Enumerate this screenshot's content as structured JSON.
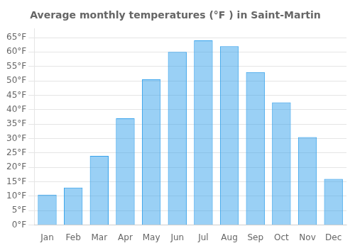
{
  "chart_data": {
    "type": "bar",
    "title": "Average monthly temperatures (°F ) in Saint-Martin",
    "categories": [
      "Jan",
      "Feb",
      "Mar",
      "Apr",
      "May",
      "Jun",
      "Jul",
      "Aug",
      "Sep",
      "Oct",
      "Nov",
      "Dec"
    ],
    "values": [
      10.5,
      13,
      24,
      37,
      50.5,
      60,
      64,
      62,
      53,
      42.5,
      30.5,
      16
    ],
    "ylim": [
      0,
      68
    ],
    "yticks": [
      {
        "value": 0,
        "label": "0°F"
      },
      {
        "value": 5,
        "label": "5°F"
      },
      {
        "value": 10,
        "label": "10°F"
      },
      {
        "value": 15,
        "label": "15°F"
      },
      {
        "value": 20,
        "label": "20°F"
      },
      {
        "value": 25,
        "label": "25°F"
      },
      {
        "value": 30,
        "label": "30°F"
      },
      {
        "value": 35,
        "label": "35°F"
      },
      {
        "value": 40,
        "label": "40°F"
      },
      {
        "value": 45,
        "label": "45°F"
      },
      {
        "value": 50,
        "label": "50°F"
      },
      {
        "value": 55,
        "label": "55°F"
      },
      {
        "value": 60,
        "label": "60°F"
      },
      {
        "value": 65,
        "label": "65°F"
      }
    ],
    "grid": true
  }
}
